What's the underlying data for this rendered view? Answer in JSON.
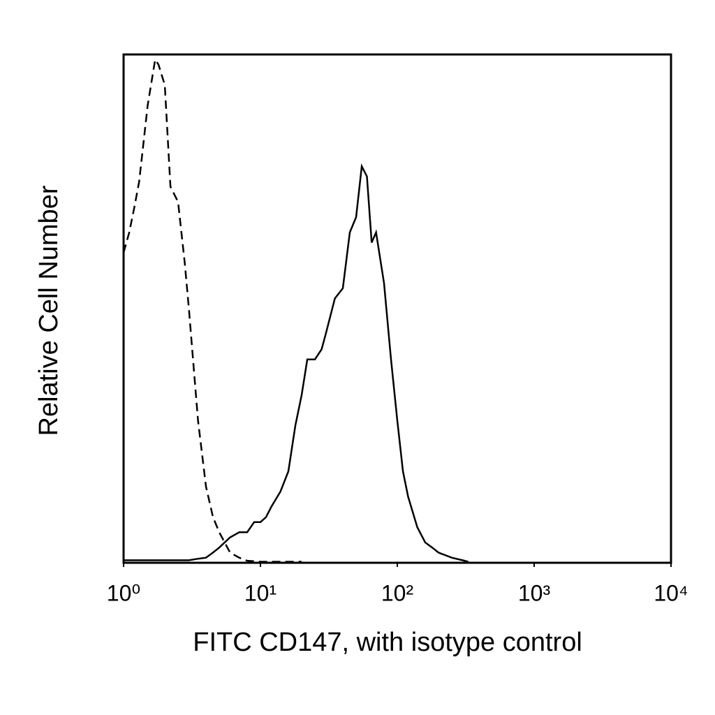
{
  "chart_data": {
    "type": "line",
    "xlabel": "FITC CD147, with isotype control",
    "ylabel": "Relative Cell Number",
    "xscale": "log",
    "xlim": [
      1,
      10000
    ],
    "xticks": [
      {
        "value": 1,
        "label": "10⁰"
      },
      {
        "value": 10,
        "label": "10¹"
      },
      {
        "value": 100,
        "label": "10²"
      },
      {
        "value": 1000,
        "label": "10³"
      },
      {
        "value": 10000,
        "label": "10⁴"
      }
    ],
    "ylim": [
      0,
      100
    ],
    "grid": false,
    "x": [
      1,
      1.1,
      1.2,
      1.3,
      1.5,
      1.7,
      1.8,
      2,
      2.2,
      2.5,
      2.8,
      3,
      3.5,
      4,
      4.5,
      5,
      6,
      7,
      8,
      9,
      10,
      11,
      12,
      14,
      16,
      18,
      20,
      22,
      25,
      28,
      30,
      35,
      40,
      45,
      50,
      55,
      60,
      65,
      70,
      80,
      90,
      100,
      110,
      120,
      140,
      160,
      180,
      200,
      250,
      300,
      330
    ],
    "series": [
      {
        "color": "#000000",
        "dash": false,
        "values": [
          0.5,
          0.5,
          0.5,
          0.5,
          0.5,
          0.5,
          0.5,
          0.5,
          0.5,
          0.5,
          0.5,
          0.5,
          0.8,
          1,
          2,
          3,
          5,
          6,
          6,
          8,
          8,
          9,
          11,
          14,
          18,
          27,
          33,
          40,
          40,
          42,
          45,
          52,
          54,
          65,
          68,
          78,
          76,
          63,
          65,
          55,
          40,
          28,
          18,
          13,
          7,
          4,
          3,
          2,
          1,
          0.5,
          0.2
        ]
      },
      {
        "color": "#000000",
        "dash": true,
        "values": [
          61,
          65,
          70,
          75,
          90,
          99,
          98,
          94,
          74,
          71,
          59,
          50,
          28,
          15,
          9,
          6,
          2,
          1,
          0.4,
          0.3,
          0.2,
          0.2,
          0.2,
          0.2,
          0.2,
          0.2,
          0.2,
          null,
          null,
          null,
          null,
          null,
          null,
          null,
          null,
          null,
          null,
          null,
          null,
          null,
          null,
          null,
          null,
          null,
          null,
          null,
          null,
          null,
          null,
          null,
          null
        ]
      }
    ]
  }
}
